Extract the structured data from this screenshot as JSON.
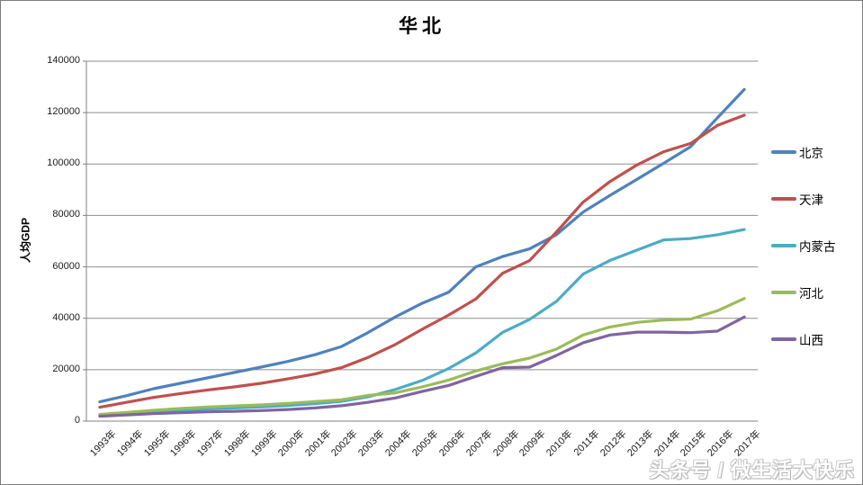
{
  "watermark": {
    "text": "头条号 / 微生活大快乐"
  },
  "chart_data": {
    "type": "line",
    "title": "华北",
    "xlabel": "",
    "ylabel": "人均GDP",
    "ylim": [
      0,
      140000
    ],
    "ytick_step": 20000,
    "ytick_labels": [
      "0",
      "20000",
      "40000",
      "60000",
      "80000",
      "100000",
      "120000",
      "140000"
    ],
    "grid": true,
    "legend_position": "right",
    "axis_color": "#808080",
    "gridline_color": "#8e8e8e",
    "categories": [
      "1993年",
      "1994年",
      "1995年",
      "1996年",
      "1997年",
      "1998年",
      "1999年",
      "2000年",
      "2001年",
      "2002年",
      "2003年",
      "2004年",
      "2005年",
      "2006年",
      "2007年",
      "2008年",
      "2009年",
      "2010年",
      "2011年",
      "2012年",
      "2013年",
      "2014年",
      "2015年",
      "2016年",
      "2017年"
    ],
    "series": [
      {
        "key": "beijing",
        "name": "北京",
        "color": "#4F81BD",
        "values": [
          7500,
          9900,
          12600,
          14700,
          16800,
          18900,
          21000,
          23200,
          25800,
          29000,
          34500,
          40500,
          45800,
          50200,
          60000,
          64000,
          67000,
          72500,
          81300,
          87800,
          94000,
          100300,
          106700,
          118000,
          129000
        ]
      },
      {
        "key": "tianjin",
        "name": "天津",
        "color": "#C0504D",
        "values": [
          5400,
          7300,
          9200,
          10700,
          12100,
          13300,
          14700,
          16400,
          18300,
          20800,
          24800,
          29800,
          35700,
          41300,
          47500,
          57500,
          62400,
          73500,
          85200,
          93200,
          99600,
          104800,
          108000,
          115000,
          119000
        ]
      },
      {
        "key": "neimenggu",
        "name": "内蒙古",
        "color": "#4BACC6",
        "values": [
          2400,
          3000,
          3700,
          4300,
          4700,
          5100,
          5500,
          6100,
          6800,
          7700,
          9500,
          12300,
          15800,
          20500,
          26500,
          34500,
          39500,
          46500,
          57200,
          62500,
          66500,
          70500,
          71000,
          72500,
          74500
        ]
      },
      {
        "key": "hebei",
        "name": "河北",
        "color": "#9BBB59",
        "values": [
          2600,
          3400,
          4200,
          4900,
          5500,
          5900,
          6300,
          6900,
          7600,
          8300,
          10000,
          11000,
          13300,
          16000,
          19500,
          22300,
          24500,
          28000,
          33500,
          36600,
          38400,
          39300,
          39700,
          42900,
          47700
        ]
      },
      {
        "key": "shanxi",
        "name": "山西",
        "color": "#8064A2",
        "values": [
          1900,
          2400,
          2900,
          3300,
          3600,
          3800,
          4100,
          4500,
          5100,
          6000,
          7300,
          9000,
          11500,
          13900,
          17400,
          20800,
          21000,
          25500,
          30500,
          33500,
          34600,
          34600,
          34400,
          35000,
          40500
        ]
      }
    ]
  }
}
